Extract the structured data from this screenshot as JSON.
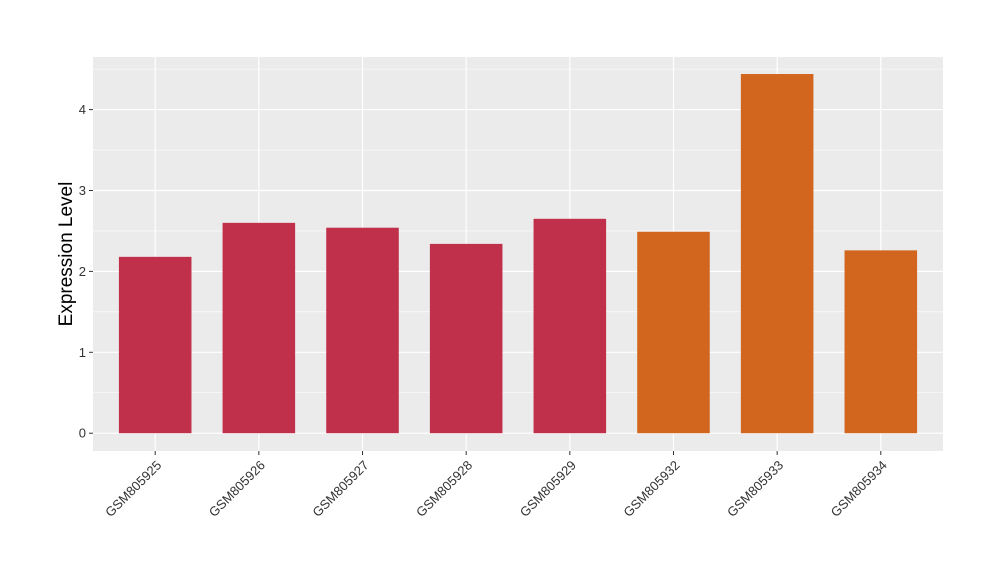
{
  "chart_data": {
    "type": "bar",
    "title": "",
    "xlabel": "",
    "ylabel": "Expression Level",
    "categories": [
      "GSM805925",
      "GSM805926",
      "GSM805927",
      "GSM805928",
      "GSM805929",
      "GSM805932",
      "GSM805933",
      "GSM805934"
    ],
    "values": [
      2.18,
      2.6,
      2.54,
      2.34,
      2.65,
      2.49,
      4.44,
      2.26
    ],
    "bar_colors": [
      "#c0304a",
      "#c0304a",
      "#c0304a",
      "#c0304a",
      "#c0304a",
      "#d2661f",
      "#d2661f",
      "#d2661f"
    ],
    "ylim": [
      -0.22,
      4.65
    ],
    "yticks": [
      0,
      1,
      2,
      3,
      4
    ],
    "ytick_labels": [
      "0",
      "1",
      "2",
      "3",
      "4"
    ],
    "grid": true,
    "legend": "none",
    "panel_background": "#ebebeb",
    "grid_color": "#ffffff"
  }
}
